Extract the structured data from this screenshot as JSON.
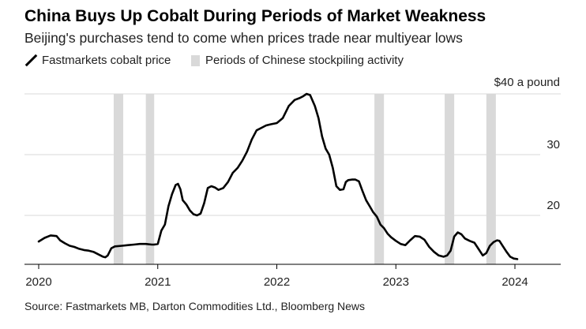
{
  "header": {
    "title": "China Buys Up Cobalt During Periods of Market Weakness",
    "subtitle": "Beijing's purchases tend to come when prices trade near multiyear lows"
  },
  "legend": {
    "line_label": "Fastmarkets cobalt price",
    "shade_label": "Periods of Chinese stockpiling activity"
  },
  "source": "Source: Fastmarkets MB, Darton Commodities Ltd., Bloomberg News",
  "colors": {
    "line": "#000000",
    "shade": "#d9d9d9",
    "grid": "#d9d9d9"
  },
  "chart_data": {
    "type": "line",
    "title": "China Buys Up Cobalt During Periods of Market Weakness",
    "subtitle": "Beijing's purchases tend to come when prices trade near multiyear lows",
    "ylabel": "",
    "y_unit_label": "$40 a pound",
    "ylim": [
      10,
      40
    ],
    "y_ticks": [
      20,
      30,
      40
    ],
    "y_tick_labels": [
      "20",
      "30",
      "$40 a pound"
    ],
    "xlim": [
      2020.0,
      2024.38
    ],
    "x_ticks": [
      2020,
      2021,
      2022,
      2023,
      2024
    ],
    "x_tick_labels": [
      "2020",
      "2021",
      "2022",
      "2023",
      "2024"
    ],
    "grid": true,
    "series": [
      {
        "name": "Fastmarkets cobalt price",
        "x": [
          2020.0,
          2020.05,
          2020.1,
          2020.15,
          2020.18,
          2020.22,
          2020.26,
          2020.3,
          2020.34,
          2020.38,
          2020.42,
          2020.46,
          2020.5,
          2020.54,
          2020.56,
          2020.58,
          2020.61,
          2020.64,
          2020.7,
          2020.75,
          2020.8,
          2020.85,
          2020.9,
          2020.95,
          2020.97,
          2021.0,
          2021.03,
          2021.06,
          2021.09,
          2021.12,
          2021.15,
          2021.17,
          2021.19,
          2021.21,
          2021.24,
          2021.27,
          2021.3,
          2021.33,
          2021.36,
          2021.39,
          2021.42,
          2021.45,
          2021.48,
          2021.51,
          2021.55,
          2021.59,
          2021.63,
          2021.67,
          2021.71,
          2021.75,
          2021.79,
          2021.83,
          2021.87,
          2021.91,
          2021.95,
          2022.0,
          2022.05,
          2022.1,
          2022.15,
          2022.19,
          2022.22,
          2022.25,
          2022.28,
          2022.32,
          2022.35,
          2022.38,
          2022.41,
          2022.44,
          2022.47,
          2022.5,
          2022.53,
          2022.56,
          2022.58,
          2022.6,
          2022.63,
          2022.66,
          2022.69,
          2022.72,
          2022.75,
          2022.78,
          2022.81,
          2022.84,
          2022.87,
          2022.9,
          2022.93,
          2022.96,
          2023.0,
          2023.04,
          2023.08,
          2023.12,
          2023.16,
          2023.2,
          2023.24,
          2023.28,
          2023.32,
          2023.36,
          2023.4,
          2023.43,
          2023.46,
          2023.49,
          2023.52,
          2023.55,
          2023.58,
          2023.62,
          2023.66,
          2023.7,
          2023.73,
          2023.76,
          2023.79,
          2023.82,
          2023.85,
          2023.87,
          2023.9,
          2023.93,
          2023.96,
          2023.99,
          2024.02
        ],
        "values": [
          15.7,
          16.3,
          16.7,
          16.6,
          15.9,
          15.4,
          15.0,
          14.8,
          14.5,
          14.3,
          14.2,
          14.0,
          13.6,
          13.2,
          13.1,
          13.4,
          14.6,
          14.9,
          15.0,
          15.1,
          15.2,
          15.3,
          15.3,
          15.2,
          15.2,
          15.3,
          17.5,
          18.5,
          21.5,
          23.5,
          25.0,
          25.2,
          24.3,
          22.5,
          21.8,
          20.8,
          20.2,
          20.0,
          20.3,
          22.0,
          24.5,
          24.8,
          24.6,
          24.2,
          24.5,
          25.5,
          27.0,
          27.8,
          29.0,
          30.5,
          32.5,
          34.0,
          34.4,
          34.8,
          35.0,
          35.2,
          36.0,
          38.0,
          39.0,
          39.3,
          39.6,
          40.0,
          39.8,
          38.0,
          36.0,
          33.0,
          31.0,
          30.0,
          27.8,
          24.8,
          24.2,
          24.3,
          25.5,
          25.8,
          25.9,
          25.9,
          25.6,
          24.0,
          22.5,
          21.5,
          20.5,
          19.8,
          18.5,
          17.9,
          17.0,
          16.4,
          15.8,
          15.3,
          15.1,
          15.9,
          16.6,
          16.5,
          16.0,
          14.8,
          14.0,
          13.4,
          13.2,
          13.4,
          14.2,
          16.5,
          17.2,
          16.9,
          16.2,
          15.8,
          15.5,
          14.3,
          13.4,
          13.8,
          15.0,
          15.6,
          15.9,
          15.8,
          14.9,
          14.0,
          13.2,
          12.9,
          12.8
        ]
      }
    ],
    "shaded_periods": [
      {
        "start": 2020.63,
        "end": 2020.71
      },
      {
        "start": 2020.9,
        "end": 2020.97
      },
      {
        "start": 2022.82,
        "end": 2022.9
      },
      {
        "start": 2023.41,
        "end": 2023.49
      },
      {
        "start": 2023.76,
        "end": 2023.84
      }
    ]
  }
}
